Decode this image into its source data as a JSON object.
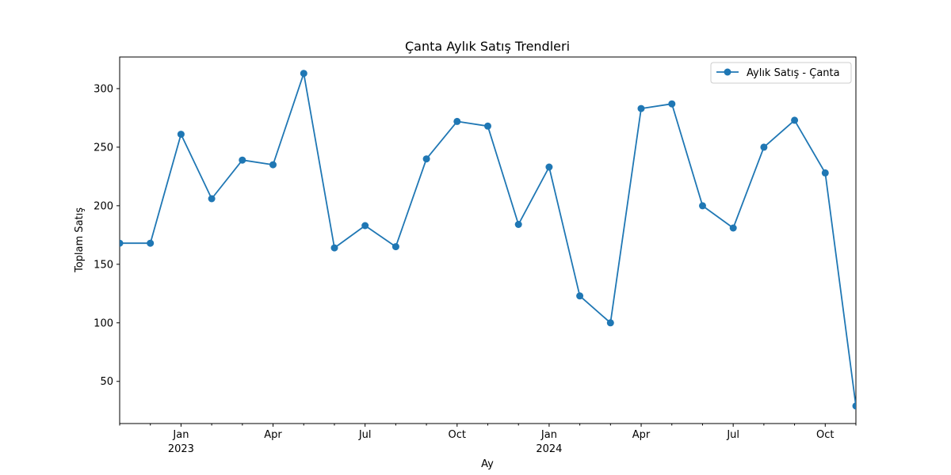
{
  "chart_data": {
    "type": "line",
    "title": "Çanta Aylık Satış Trendleri",
    "xlabel": "Ay",
    "ylabel": "Toplam Satış",
    "color": "#1f77b4",
    "grid": false,
    "legend_position": "top-right",
    "ylim": [
      14,
      327
    ],
    "xlim": [
      "2022-11",
      "2024-11"
    ],
    "x": [
      "2022-11",
      "2022-12",
      "2023-01",
      "2023-02",
      "2023-03",
      "2023-04",
      "2023-05",
      "2023-06",
      "2023-07",
      "2023-08",
      "2023-09",
      "2023-10",
      "2023-11",
      "2023-12",
      "2024-01",
      "2024-02",
      "2024-03",
      "2024-04",
      "2024-05",
      "2024-06",
      "2024-07",
      "2024-08",
      "2024-09",
      "2024-10",
      "2024-11"
    ],
    "series": [
      {
        "name": "Aylık Satış - Çanta",
        "values": [
          168,
          168,
          261,
          206,
          239,
          235,
          313,
          164,
          183,
          165,
          240,
          272,
          268,
          184,
          233,
          123,
          100,
          283,
          287,
          200,
          181,
          250,
          273,
          228,
          29
        ]
      }
    ],
    "yticks": [
      50,
      100,
      150,
      200,
      250,
      300
    ],
    "major_ticks": [
      {
        "x": "2023-01",
        "label": "Jan",
        "year": "2023"
      },
      {
        "x": "2023-04",
        "label": "Apr",
        "year": ""
      },
      {
        "x": "2023-07",
        "label": "Jul",
        "year": ""
      },
      {
        "x": "2023-10",
        "label": "Oct",
        "year": ""
      },
      {
        "x": "2024-01",
        "label": "Jan",
        "year": "2024"
      },
      {
        "x": "2024-04",
        "label": "Apr",
        "year": ""
      },
      {
        "x": "2024-07",
        "label": "Jul",
        "year": ""
      },
      {
        "x": "2024-10",
        "label": "Oct",
        "year": ""
      }
    ]
  }
}
